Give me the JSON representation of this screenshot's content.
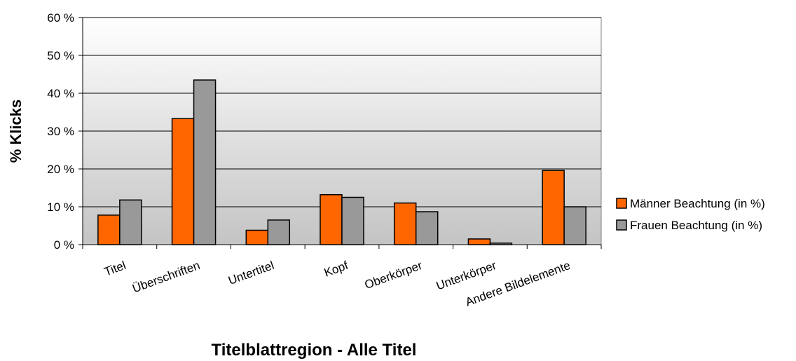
{
  "chart_data": {
    "type": "bar",
    "title": "",
    "xlabel": "Titelblattregion - Alle Titel",
    "ylabel": "% Klicks",
    "categories": [
      "Titel",
      "Überschriften",
      "Untertitel",
      "Kopf",
      "Oberkörper",
      "Unterkörper",
      "Andere Bildelemente"
    ],
    "series": [
      {
        "name": "Männer Beachtung (in %)",
        "color": "#ff6600",
        "values": [
          7.8,
          33.3,
          3.8,
          13.2,
          11.0,
          1.5,
          19.6
        ]
      },
      {
        "name": "Frauen Beachtung (in %)",
        "color": "#999999",
        "values": [
          11.8,
          43.5,
          6.5,
          12.5,
          8.7,
          0.4,
          10.0
        ]
      }
    ],
    "ylim": [
      0,
      60
    ],
    "yticks": [
      0,
      10,
      20,
      30,
      40,
      50,
      60
    ],
    "ytick_labels": [
      "0 %",
      "10 %",
      "20 %",
      "30 %",
      "40 %",
      "50 %",
      "60 %"
    ],
    "grid": true,
    "legend_position": "right"
  }
}
